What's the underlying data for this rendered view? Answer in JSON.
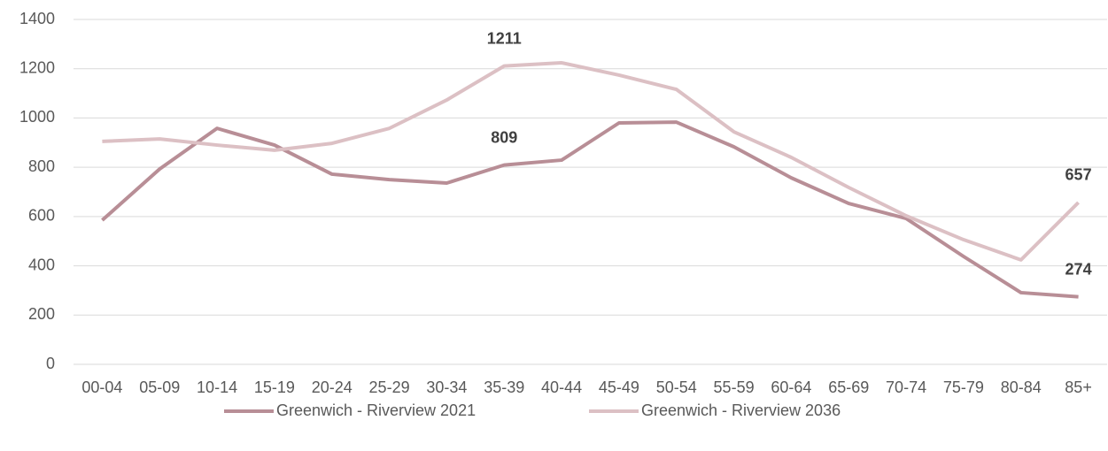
{
  "chart_data": {
    "type": "line",
    "categories": [
      "00-04",
      "05-09",
      "10-14",
      "15-19",
      "20-24",
      "25-29",
      "30-34",
      "35-39",
      "40-44",
      "45-49",
      "50-54",
      "55-59",
      "60-64",
      "65-69",
      "70-74",
      "75-79",
      "80-84",
      "85+"
    ],
    "series": [
      {
        "name": "Greenwich - Riverview 2021",
        "color": "#b88e96",
        "values": [
          585,
          793,
          958,
          890,
          772,
          750,
          736,
          809,
          829,
          980,
          983,
          883,
          757,
          653,
          592,
          438,
          291,
          274
        ],
        "label_indices": [
          7,
          17
        ]
      },
      {
        "name": "Greenwich - Riverview 2036",
        "color": "#dcc0c4",
        "values": [
          905,
          915,
          890,
          869,
          897,
          958,
          1073,
          1211,
          1224,
          1174,
          1116,
          944,
          840,
          718,
          603,
          506,
          424,
          657
        ],
        "label_indices": [
          7,
          17
        ]
      }
    ],
    "ylim": [
      0,
      1400
    ],
    "yticks": [
      0,
      200,
      400,
      600,
      800,
      1000,
      1200,
      1400
    ],
    "grid": true,
    "legend": "bottom"
  }
}
